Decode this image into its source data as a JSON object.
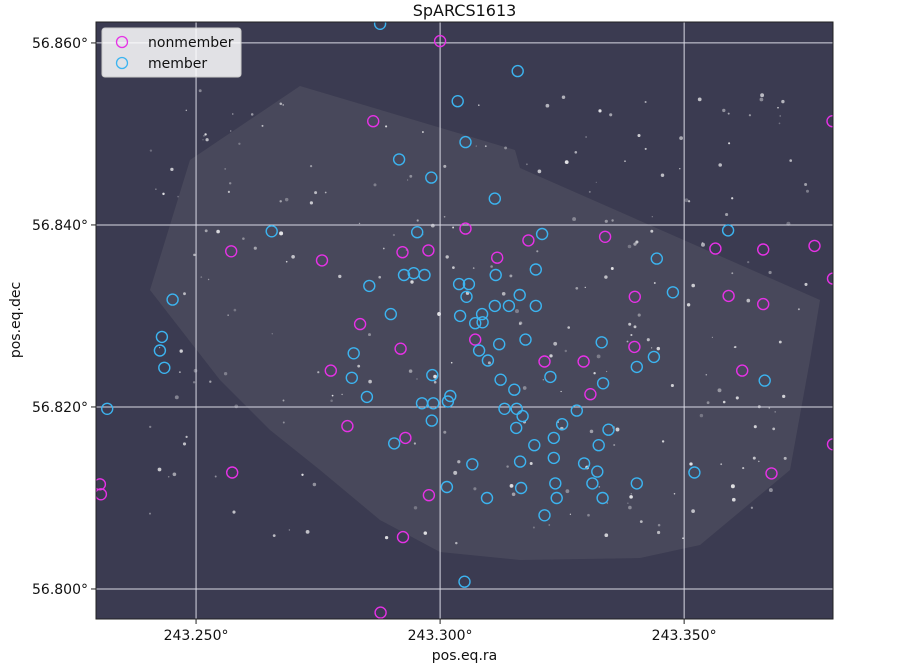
{
  "chart_data": {
    "type": "scatter",
    "title": "SpARCS1613",
    "xlabel": "pos.eq.ra",
    "ylabel": "pos.eq.dec",
    "xlim": [
      243.2295,
      243.3805
    ],
    "ylim": [
      56.7967,
      56.8623
    ],
    "x_ticks": [
      243.25,
      243.3,
      243.35
    ],
    "x_tick_labels": [
      "243.250°",
      "243.300°",
      "243.350°"
    ],
    "y_ticks": [
      56.8,
      56.82,
      56.84,
      56.86
    ],
    "y_tick_labels": [
      "56.800°",
      "56.820°",
      "56.840°",
      "56.860°"
    ],
    "grid": true,
    "legend_position": "top-left",
    "background": "image",
    "series": [
      {
        "name": "nonmember",
        "color": "#e632e6",
        "marker": "open-circle",
        "points": [
          [
            243.3,
            56.8602
          ],
          [
            243.2863,
            56.8514
          ],
          [
            243.3804,
            56.8514
          ],
          [
            243.2976,
            56.8372
          ],
          [
            243.2923,
            56.837
          ],
          [
            243.2758,
            56.8361
          ],
          [
            243.2572,
            56.8371
          ],
          [
            243.3052,
            56.8396
          ],
          [
            243.3117,
            56.8364
          ],
          [
            243.3181,
            56.8383
          ],
          [
            243.3338,
            56.8387
          ],
          [
            243.3564,
            56.8374
          ],
          [
            243.3662,
            56.8373
          ],
          [
            243.3767,
            56.8377
          ],
          [
            243.3805,
            56.8341
          ],
          [
            243.3399,
            56.8321
          ],
          [
            243.3591,
            56.8322
          ],
          [
            243.3662,
            56.8313
          ],
          [
            243.2836,
            56.8291
          ],
          [
            243.2919,
            56.8264
          ],
          [
            243.3072,
            56.8274
          ],
          [
            243.3214,
            56.825
          ],
          [
            243.3294,
            56.825
          ],
          [
            243.3398,
            56.8266
          ],
          [
            243.3619,
            56.824
          ],
          [
            243.2776,
            56.824
          ],
          [
            243.281,
            56.8179
          ],
          [
            243.2929,
            56.8166
          ],
          [
            243.3308,
            56.8214
          ],
          [
            243.2574,
            56.8128
          ],
          [
            243.2303,
            56.8115
          ],
          [
            243.2305,
            56.8104
          ],
          [
            243.2977,
            56.8103
          ],
          [
            243.3679,
            56.8127
          ],
          [
            243.2924,
            56.8057
          ],
          [
            243.2878,
            56.7974
          ],
          [
            243.3805,
            56.8159
          ]
        ]
      },
      {
        "name": "member",
        "color": "#3cb4f0",
        "marker": "open-circle",
        "points": [
          [
            243.2877,
            56.8621
          ],
          [
            243.3159,
            56.8569
          ],
          [
            243.3036,
            56.8536
          ],
          [
            243.3052,
            56.8491
          ],
          [
            243.2916,
            56.8472
          ],
          [
            243.2982,
            56.8452
          ],
          [
            243.3112,
            56.8429
          ],
          [
            243.2655,
            56.8393
          ],
          [
            243.2953,
            56.8392
          ],
          [
            243.3209,
            56.839
          ],
          [
            243.359,
            56.8394
          ],
          [
            243.2926,
            56.8345
          ],
          [
            243.2946,
            56.8347
          ],
          [
            243.2968,
            56.8345
          ],
          [
            243.3039,
            56.8335
          ],
          [
            243.3059,
            56.8335
          ],
          [
            243.3114,
            56.8345
          ],
          [
            243.3196,
            56.8351
          ],
          [
            243.3444,
            56.8363
          ],
          [
            243.2855,
            56.8333
          ],
          [
            243.3054,
            56.8321
          ],
          [
            243.3163,
            56.8323
          ],
          [
            243.3477,
            56.8326
          ],
          [
            243.2452,
            56.8318
          ],
          [
            243.3112,
            56.8311
          ],
          [
            243.3141,
            56.8311
          ],
          [
            243.3196,
            56.8311
          ],
          [
            243.2899,
            56.8302
          ],
          [
            243.3041,
            56.83
          ],
          [
            243.3086,
            56.8302
          ],
          [
            243.3087,
            56.8293
          ],
          [
            243.3072,
            56.8292
          ],
          [
            243.243,
            56.8277
          ],
          [
            243.2823,
            56.8259
          ],
          [
            243.2426,
            56.8262
          ],
          [
            243.2435,
            56.8243
          ],
          [
            243.308,
            56.8262
          ],
          [
            243.3121,
            56.8269
          ],
          [
            243.3175,
            56.8274
          ],
          [
            243.3331,
            56.8271
          ],
          [
            243.3438,
            56.8255
          ],
          [
            243.3403,
            56.8244
          ],
          [
            243.2819,
            56.8232
          ],
          [
            243.2984,
            56.8235
          ],
          [
            243.3124,
            56.823
          ],
          [
            243.3226,
            56.8233
          ],
          [
            243.3334,
            56.8226
          ],
          [
            243.3665,
            56.8229
          ],
          [
            243.3098,
            56.8251
          ],
          [
            243.285,
            56.8211
          ],
          [
            243.2963,
            56.8204
          ],
          [
            243.2986,
            56.8204
          ],
          [
            243.3016,
            56.8206
          ],
          [
            243.3021,
            56.8212
          ],
          [
            243.3152,
            56.8219
          ],
          [
            243.2318,
            56.8198
          ],
          [
            243.3132,
            56.8198
          ],
          [
            243.3157,
            56.8198
          ],
          [
            243.3169,
            56.819
          ],
          [
            243.2983,
            56.8185
          ],
          [
            243.328,
            56.8196
          ],
          [
            243.325,
            56.8181
          ],
          [
            243.3156,
            56.8177
          ],
          [
            243.3345,
            56.8175
          ],
          [
            243.2906,
            56.816
          ],
          [
            243.3193,
            56.8158
          ],
          [
            243.3233,
            56.8166
          ],
          [
            243.3325,
            56.8158
          ],
          [
            243.3066,
            56.8137
          ],
          [
            243.3164,
            56.814
          ],
          [
            243.3233,
            56.8144
          ],
          [
            243.3295,
            56.8138
          ],
          [
            243.3322,
            56.8129
          ],
          [
            243.3014,
            56.8112
          ],
          [
            243.3166,
            56.8111
          ],
          [
            243.3236,
            56.8116
          ],
          [
            243.3312,
            56.8116
          ],
          [
            243.3403,
            56.8116
          ],
          [
            243.3521,
            56.8128
          ],
          [
            243.3096,
            56.81
          ],
          [
            243.3239,
            56.81
          ],
          [
            243.3333,
            56.81
          ],
          [
            243.3214,
            56.8081
          ],
          [
            243.305,
            56.8008
          ]
        ]
      }
    ]
  }
}
